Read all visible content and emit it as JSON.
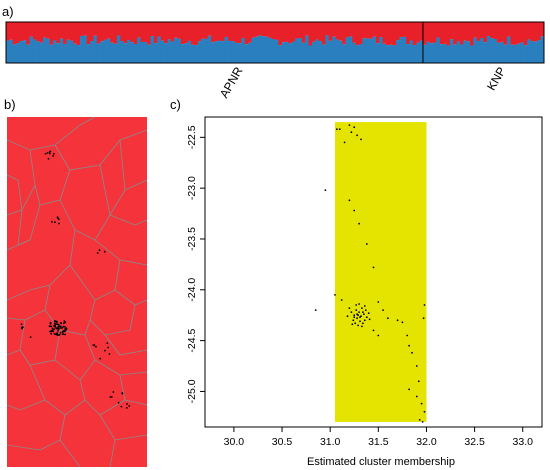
{
  "panels": {
    "a": "a)",
    "b": "b)",
    "c": "c)"
  },
  "colors": {
    "cluster1": "#e8202a",
    "cluster2": "#2a7fbf",
    "voronoi_fill": "#f5333a",
    "voronoi_edge": "#8a8a8a",
    "yellow_box": "#e4e400",
    "points": "#000000"
  },
  "chart_data": [
    {
      "panel": "a",
      "type": "bar",
      "title": "",
      "stacked": true,
      "categories_count": 160,
      "groups": [
        {
          "label": "APNR",
          "start": 0,
          "end": 124
        },
        {
          "label": "KNP",
          "start": 124,
          "end": 160
        }
      ],
      "series": [
        {
          "color": "#2a7fbf",
          "mean_fraction": 0.55,
          "fraction_range": [
            0.4,
            0.75
          ]
        },
        {
          "color": "#e8202a",
          "mean_fraction": 0.45,
          "fraction_range": [
            0.25,
            0.6
          ]
        }
      ],
      "ylim": [
        0,
        1
      ]
    },
    {
      "panel": "b",
      "type": "scatter",
      "title": "",
      "description": "Voronoi tessellation of sample locations, all cells assigned to one cluster",
      "cluster_count": 1
    },
    {
      "panel": "c",
      "type": "scatter",
      "title": "",
      "xlabel": "Estimated cluster membership",
      "ylabel": "",
      "xlim": [
        29.7,
        33.2
      ],
      "ylim": [
        -25.35,
        -22.3
      ],
      "x_ticks": [
        "30.0",
        "30.5",
        "31.0",
        "31.5",
        "32.0",
        "32.5",
        "33.0"
      ],
      "y_ticks": [
        "-22.5",
        "-23.0",
        "-23.5",
        "-24.0",
        "-24.5",
        "-25.0"
      ],
      "domain_box": {
        "x": [
          31.05,
          32.0
        ],
        "y": [
          -25.3,
          -22.35
        ]
      },
      "points": [
        [
          31.1,
          -22.42
        ],
        [
          31.2,
          -22.38
        ],
        [
          31.22,
          -22.45
        ],
        [
          31.25,
          -22.4
        ],
        [
          31.28,
          -22.48
        ],
        [
          31.15,
          -22.55
        ],
        [
          31.07,
          -22.42
        ],
        [
          31.32,
          -22.52
        ],
        [
          30.95,
          -23.02
        ],
        [
          31.2,
          -23.12
        ],
        [
          31.25,
          -23.22
        ],
        [
          31.3,
          -23.35
        ],
        [
          31.38,
          -23.55
        ],
        [
          31.45,
          -23.78
        ],
        [
          31.05,
          -24.05
        ],
        [
          31.12,
          -24.1
        ],
        [
          31.5,
          -24.12
        ],
        [
          31.55,
          -24.2
        ],
        [
          31.6,
          -24.28
        ],
        [
          31.7,
          -24.3
        ],
        [
          31.2,
          -24.18
        ],
        [
          31.22,
          -24.22
        ],
        [
          31.25,
          -24.25
        ],
        [
          31.27,
          -24.2
        ],
        [
          31.28,
          -24.28
        ],
        [
          31.3,
          -24.22
        ],
        [
          31.32,
          -24.26
        ],
        [
          31.33,
          -24.18
        ],
        [
          31.35,
          -24.24
        ],
        [
          31.36,
          -24.3
        ],
        [
          31.37,
          -24.2
        ],
        [
          31.38,
          -24.27
        ],
        [
          31.24,
          -24.3
        ],
        [
          31.26,
          -24.33
        ],
        [
          31.29,
          -24.35
        ],
        [
          31.31,
          -24.31
        ],
        [
          31.34,
          -24.33
        ],
        [
          31.4,
          -24.23
        ],
        [
          31.41,
          -24.29
        ],
        [
          31.18,
          -24.26
        ],
        [
          31.27,
          -24.15
        ],
        [
          31.3,
          -24.14
        ],
        [
          31.33,
          -24.36
        ],
        [
          31.23,
          -24.34
        ],
        [
          31.36,
          -24.16
        ],
        [
          31.29,
          -24.25
        ],
        [
          31.31,
          -24.27
        ],
        [
          31.25,
          -24.27
        ],
        [
          31.34,
          -24.22
        ],
        [
          31.28,
          -24.24
        ],
        [
          30.85,
          -24.2
        ],
        [
          31.45,
          -24.4
        ],
        [
          31.5,
          -24.45
        ],
        [
          31.75,
          -24.32
        ],
        [
          31.8,
          -24.45
        ],
        [
          31.82,
          -24.55
        ],
        [
          31.85,
          -24.62
        ],
        [
          31.9,
          -24.75
        ],
        [
          31.92,
          -24.9
        ],
        [
          31.82,
          -24.98
        ],
        [
          31.9,
          -25.05
        ],
        [
          31.95,
          -25.12
        ],
        [
          31.98,
          -25.2
        ],
        [
          31.93,
          -25.28
        ],
        [
          31.96,
          -25.3
        ],
        [
          31.97,
          -24.28
        ],
        [
          31.98,
          -24.15
        ]
      ]
    }
  ]
}
